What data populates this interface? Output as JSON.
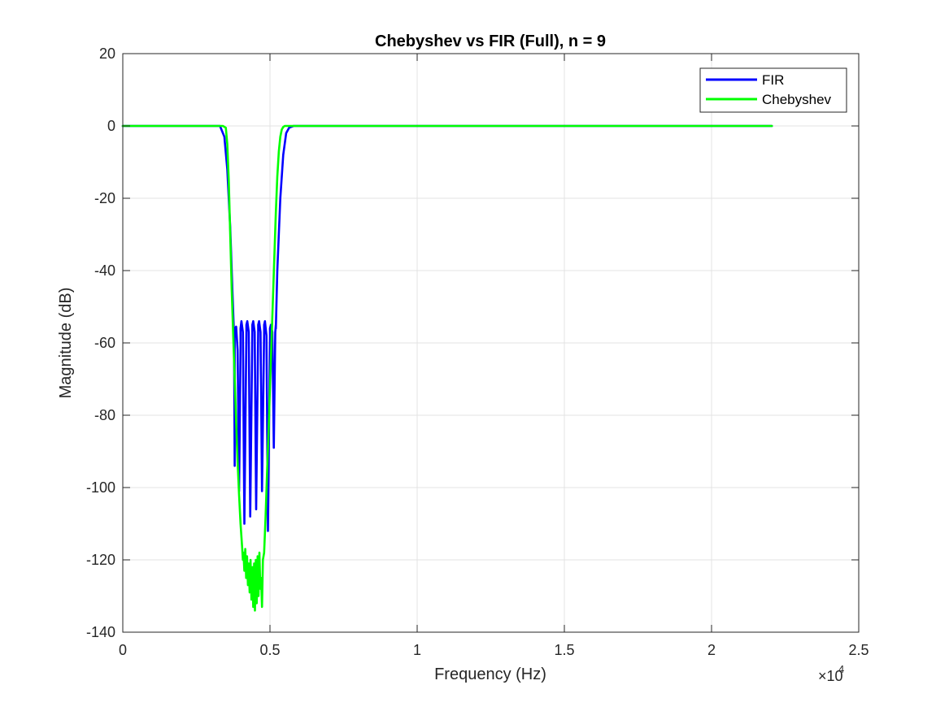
{
  "chart_data": {
    "type": "line",
    "title": "Chebyshev vs FIR (Full), n = 9",
    "xlabel": "Frequency (Hz)",
    "ylabel": "Magnitude (dB)",
    "xlim": [
      0,
      25000
    ],
    "ylim": [
      -140,
      20
    ],
    "x_ticks": [
      0,
      5000,
      10000,
      15000,
      20000,
      25000
    ],
    "x_tick_labels": [
      "0",
      "0.5",
      "1",
      "1.5",
      "2",
      "2.5"
    ],
    "x_exponent_base": "×10",
    "x_exponent_power": "4",
    "y_ticks": [
      20,
      0,
      -20,
      -40,
      -60,
      -80,
      -100,
      -120,
      -140
    ],
    "y_tick_labels": [
      "20",
      "0",
      "-20",
      "-40",
      "-60",
      "-80",
      "-100",
      "-120",
      "-140"
    ],
    "grid": true,
    "legend_position": "top-right",
    "series": [
      {
        "name": "FIR",
        "color": "#0000ff",
        "x": [
          0,
          3300,
          3450,
          3550,
          3650,
          3720,
          3780,
          3800,
          3800,
          3820,
          3850,
          3900,
          3950,
          4000,
          4000,
          4030,
          4080,
          4130,
          4200,
          4200,
          4230,
          4280,
          4330,
          4400,
          4400,
          4430,
          4480,
          4530,
          4600,
          4600,
          4630,
          4680,
          4730,
          4800,
          4800,
          4830,
          4880,
          4930,
          5000,
          5000,
          5030,
          5080,
          5130,
          5180,
          5200,
          5200,
          5250,
          5350,
          5450,
          5550,
          5650,
          5800,
          6000,
          10000,
          15000,
          22050
        ],
        "y": [
          0,
          0,
          -3,
          -12,
          -28,
          -45,
          -58,
          -94,
          -57,
          -56,
          -55.5,
          -62,
          -101,
          -62,
          -56,
          -54,
          -57,
          -110,
          -57,
          -55,
          -54,
          -57,
          -108,
          -57,
          -55,
          -54,
          -57,
          -106,
          -57,
          -55,
          -54,
          -57,
          -101,
          -57,
          -55,
          -54,
          -58,
          -112,
          -58,
          -56,
          -55,
          -57,
          -89,
          -57,
          -55,
          -56,
          -40,
          -20,
          -8,
          -2,
          -0.5,
          0,
          0,
          0,
          0,
          0
        ]
      },
      {
        "name": "Chebyshev",
        "color": "#00ff00",
        "x": [
          0,
          3400,
          3500,
          3550,
          3600,
          3650,
          3700,
          3750,
          3800,
          3850,
          3900,
          3950,
          4000,
          4050,
          4080,
          4100,
          4130,
          4160,
          4190,
          4220,
          4250,
          4280,
          4310,
          4340,
          4370,
          4400,
          4430,
          4460,
          4490,
          4520,
          4550,
          4580,
          4610,
          4640,
          4670,
          4700,
          4730,
          4760,
          4800,
          4850,
          4900,
          4950,
          5000,
          5050,
          5100,
          5150,
          5200,
          5250,
          5300,
          5350,
          5400,
          5450,
          5500,
          5550,
          5600,
          6000,
          10000,
          15000,
          22050
        ],
        "y": [
          0,
          0,
          -0.5,
          -5,
          -15,
          -30,
          -45,
          -58,
          -70,
          -82,
          -93,
          -102,
          -110,
          -116,
          -120,
          -118,
          -123,
          -117,
          -125,
          -119,
          -127,
          -121,
          -129,
          -120,
          -131,
          -122,
          -133,
          -121,
          -134,
          -120,
          -132,
          -119,
          -130,
          -118,
          -128,
          -125,
          -133,
          -120,
          -118,
          -108,
          -96,
          -85,
          -72,
          -60,
          -48,
          -36,
          -24,
          -14,
          -7,
          -3,
          -1,
          -0.3,
          0,
          0,
          0,
          0,
          0,
          0,
          0
        ]
      }
    ]
  }
}
